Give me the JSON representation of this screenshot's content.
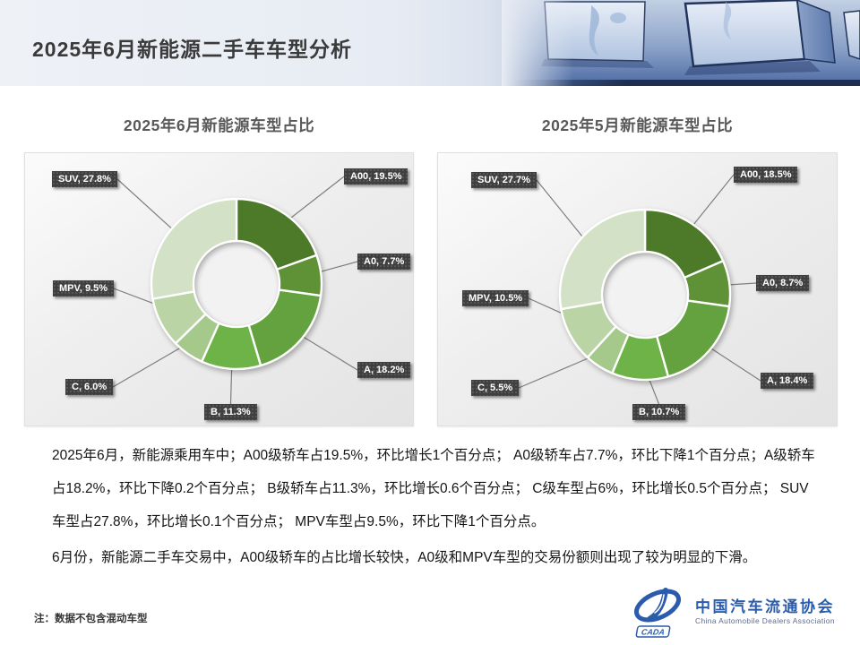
{
  "header": {
    "title": "2025年6月新能源二手车车型分析"
  },
  "chart_data": [
    {
      "type": "pie",
      "subtype": "donut",
      "title": "2025年6月新能源车型占比",
      "categories": [
        "A00",
        "A0",
        "A",
        "B",
        "C",
        "MPV",
        "SUV"
      ],
      "values": [
        19.5,
        7.7,
        18.2,
        11.3,
        6.0,
        9.5,
        27.8
      ],
      "labels": [
        "A00, 19.5%",
        "A0, 7.7%",
        "A, 18.2%",
        "B, 11.3%",
        "C, 6.0%",
        "MPV, 9.5%",
        "SUV, 27.8%"
      ],
      "colors": [
        "#4c7a28",
        "#5f9137",
        "#63a23e",
        "#6db347",
        "#a5c88b",
        "#bad4a5",
        "#d3e1c6"
      ],
      "start_angle_deg": 0,
      "direction": "clockwise",
      "hole_ratio": 0.5,
      "legend": "none"
    },
    {
      "type": "pie",
      "subtype": "donut",
      "title": "2025年5月新能源车型占比",
      "categories": [
        "A00",
        "A0",
        "A",
        "B",
        "C",
        "MPV",
        "SUV"
      ],
      "values": [
        18.5,
        8.7,
        18.4,
        10.7,
        5.5,
        10.5,
        27.7
      ],
      "labels": [
        "A00, 18.5%",
        "A0, 8.7%",
        "A, 18.4%",
        "B, 10.7%",
        "C, 5.5%",
        "MPV, 10.5%",
        "SUV, 27.7%"
      ],
      "colors": [
        "#4c7a28",
        "#5f9137",
        "#63a23e",
        "#6db347",
        "#a5c88b",
        "#bad4a5",
        "#d3e1c6"
      ],
      "start_angle_deg": 0,
      "direction": "clockwise",
      "hole_ratio": 0.5,
      "legend": "none"
    }
  ],
  "body": {
    "paragraphs": [
      "2025年6月，新能源乘用车中；A00级轿车占19.5%，环比增长1个百分点；  A0级轿车占7.7%，环比下降1个百分点；A级轿车占18.2%，环比下降0.2个百分点； B级轿车占11.3%，环比增长0.6个百分点； C级车型占6%，环比增长0.5个百分点； SUV车型占27.8%，环比增长0.1个百分点；  MPV车型占9.5%，环比下降1个百分点。",
      "6月份，新能源二手车交易中，A00级轿车的占比增长较快，A0级和MPV车型的交易份额则出现了较为明显的下滑。"
    ],
    "note": "注：数据不包含混动车型"
  },
  "logo": {
    "name_cn": "中国汽车流通协会",
    "name_en": "China Automobile Dealers Association",
    "abbr": "CADA",
    "color": "#2b5cab"
  },
  "theme": {
    "label_box_bg": "#3f3f3f",
    "label_text": "#ffffff",
    "leader_line": "#7f7f7f",
    "chart_title_color": "#595959",
    "slice_stroke": "#ffffff"
  }
}
